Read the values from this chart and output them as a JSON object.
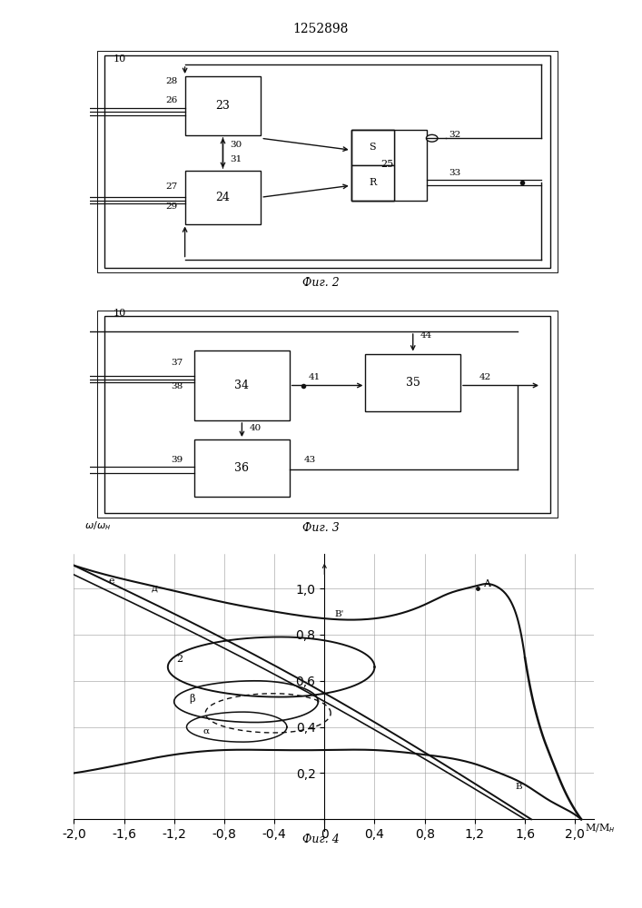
{
  "title": "1252898",
  "fig2_caption": "Фиг. 2",
  "fig3_caption": "Фиг. 3",
  "fig4_caption": "Фиг. 4",
  "line_color": "#111111"
}
